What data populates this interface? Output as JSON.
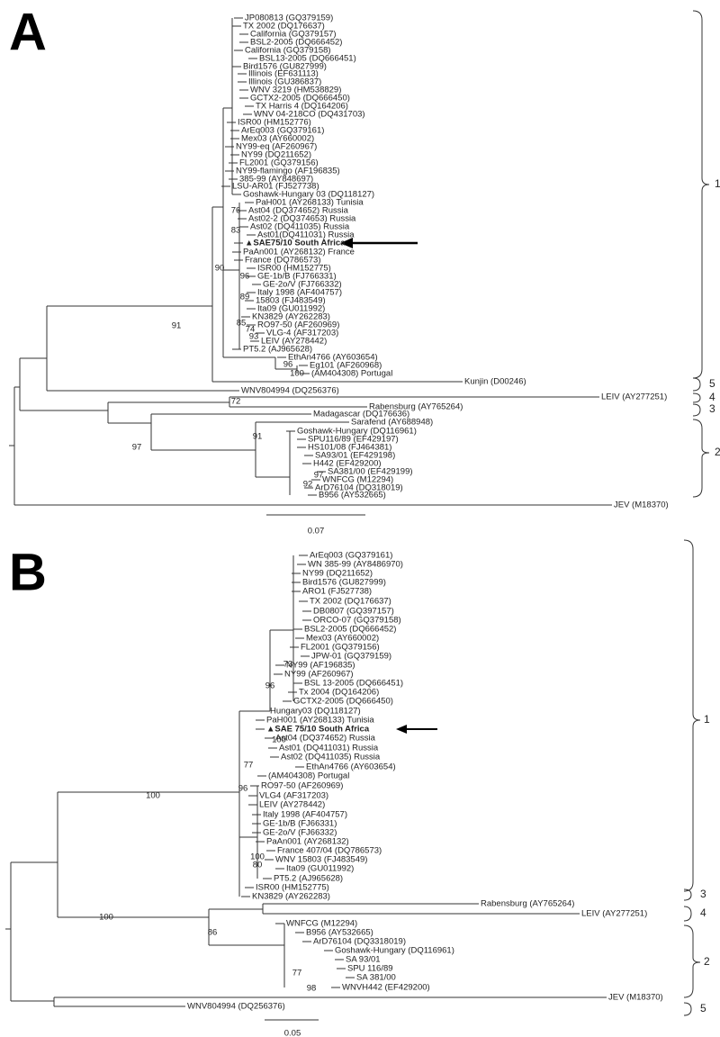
{
  "panels": [
    {
      "label": "A",
      "leaves": [
        "JP080813 (GQ379159)",
        "TX 2002 (DQ176637)",
        "California (GQ379157)",
        "BSL2-2005 (DQ666452)",
        "California (GQ379158)",
        "BSL13-2005 (DQ666451)",
        "Bird1576 (GU827999)",
        "Illinois (EF631113)",
        "Illinois (GU386837)",
        "WNV 3219 (HM538829)",
        "GCTX2-2005 (DQ666450)",
        "TX Harris 4 (DQ164206)",
        "WNV 04-218CO (DQ431703)",
        "ISR00 (HM152776)",
        "ArEq003 (GQ379161)",
        "Mex03 (AY660002)",
        "NY99-eq (AF260967)",
        "NY99 (DQ211652)",
        "FL2001 (GQ379156)",
        "NY99-flamingo (AF196835)",
        "385-99 (AY848697)",
        "LSU-AR01 (FJ527738)",
        "Goshawk-Hungary 03 (DQ118127)",
        "PaH001 (AY268133) Tunisia",
        "Ast04 (DQ374652) Russia",
        "Ast02-2 (DQ374653) Russia",
        "Ast02 (DQ411035) Russia",
        "Ast01(DQ411031) Russia",
        "▲SAE75/10 South Africa",
        "PaAn001 (AY268132) France",
        "France (DQ786573)",
        "ISR00 (HM152775)",
        "GE-1b/B (FJ766331)",
        "GE-2o/V (FJ766332)",
        "Italy 1998 (AF404757)",
        "15803 (FJ483549)",
        "Ita09 (GU011992)",
        "KN3829 (AY262283)",
        "RO97-50 (AF260969)",
        "VLG-4 (AF317203)",
        "LEIV (AY278442)",
        "PT5.2 (AJ965628)",
        "EthAn4766 (AY603654)",
        "Eg101 (AF260968)",
        "(AM404308) Portugal",
        "Kunjin (D00246)",
        "WNV804994 (DQ256376)",
        "LEIV (AY277251)",
        "Rabensburg (AY765264)",
        "Madagascar (DQ176636)",
        "Sarafend (AY688948)",
        "Goshawk-Hungary (DQ116961)",
        "SPU116/89 (EF429197)",
        "HS101/08 (FJ464381)",
        "SA93/01 (EF429198)",
        "H442 (EF429200)",
        "SA381/00 (EF429199)",
        "WNFCG (M12294)",
        "ArD76104 (DQ318019)",
        "B956 (AY532665)",
        "JEV (M18370)"
      ],
      "bootstrap": [
        76,
        83,
        90,
        96,
        89,
        85,
        74,
        93,
        96,
        100,
        91,
        72,
        97,
        91,
        97,
        92
      ],
      "clades": [
        1,
        5,
        4,
        3,
        2
      ],
      "scale": 0.07
    },
    {
      "label": "B",
      "leaves": [
        "ArEq003 (GQ379161)",
        "WN 385-99 (AY8486970)",
        "NY99 (DQ211652)",
        "Bird1576 (GU827999)",
        "ARO1 (FJ527738)",
        "TX 2002 (DQ176637)",
        "DB0807 (GQ397157)",
        "ORCO-07 (GQ379158)",
        "BSL2-2005 (DQ666452)",
        "Mex03 (AY660002)",
        "FL2001 (GQ379156)",
        "JPW-01 (GQ379159)",
        "NY99 (AF196835)",
        "NY99 (AF260967)",
        "BSL 13-2005 (DQ666451)",
        "Tx 2004 (DQ164206)",
        "GCTX2-2005 (DQ666450)",
        "Hungary03 (DQ118127)",
        "PaH001 (AY268133) Tunisia",
        "▲SAE 75/10 South Africa",
        "Ast04 (DQ374652) Russia",
        "Ast01 (DQ411031) Russia",
        "Ast02 (DQ411035) Russia",
        "EthAn4766 (AY603654)",
        "(AM404308) Portugal",
        "RO97-50 (AF260969)",
        "VLG4 (AF317203)",
        "LEIV (AY278442)",
        "Italy 1998 (AF404757)",
        "GE-1b/B (FJ66331)",
        "GE-2o/V (FJ66332)",
        "PaAn001 (AY268132)",
        "France 407/04 (DQ786573)",
        "WNV 15803 (FJ483549)",
        "Ita09 (GU011992)",
        "PT5.2 (AJ965628)",
        "ISR00 (HM152775)",
        "KN3829 (AY262283)",
        "Rabensburg (AY765264)",
        "LEIV (AY277251)",
        "WNFCG (M12294)",
        "B956 (AY532665)",
        "ArD76104 (DQ3318019)",
        "Goshawk-Hungary (DQ116961)",
        "SA 93/01",
        "SPU 116/89",
        "SA 381/00",
        "WNVH442 (EF429200)",
        "JEV (M18370)",
        "WNV804994 (DQ256376)"
      ],
      "bootstrap": [
        73,
        96,
        100,
        77,
        96,
        100,
        80,
        100,
        100,
        86,
        77,
        98
      ],
      "clades": [
        1,
        3,
        4,
        2,
        5
      ],
      "scale": 0.05
    }
  ]
}
